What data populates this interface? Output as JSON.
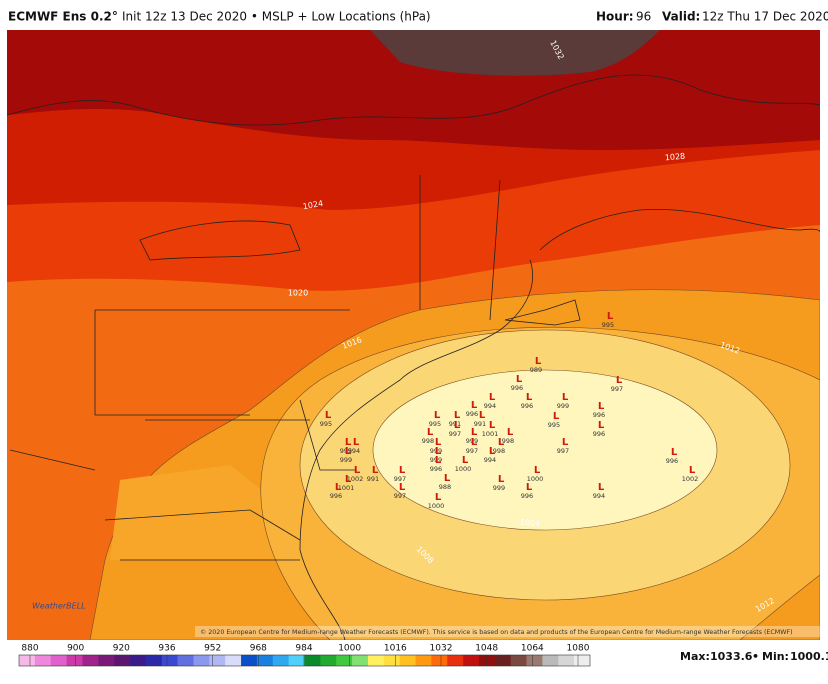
{
  "header": {
    "title": "ECMWF Ens 0.2°",
    "subtitle": "Init 12z 13 Dec 2020 • MSLP + Low Locations (hPa)",
    "hour_label": "Hour:",
    "hour": "96",
    "valid_label": "Valid:",
    "valid": "12z Thu 17 Dec 2020"
  },
  "map": {
    "contour_labels": [
      "1032",
      "1028",
      "1024",
      "1020",
      "1016",
      "1012",
      "1008",
      "1004",
      "1012"
    ],
    "low_symbol": "L",
    "low_values": [
      989,
      995,
      996,
      997,
      994,
      996,
      999,
      996,
      996,
      995,
      991,
      991,
      995,
      997,
      1001,
      996,
      998,
      999,
      998,
      999,
      997,
      998,
      997,
      999,
      994,
      996,
      996,
      1000,
      995,
      994,
      999,
      1002,
      991,
      997,
      1000,
      1002,
      1001,
      988,
      999,
      996,
      997,
      996,
      994,
      1000,
      995
    ],
    "copyright": "© 2020 European Centre for Medium-range Weather Forecasts (ECMWF). This service is based on data and products of the European Centre for Medium-range Weather Forecasts (ECMWF)",
    "logo": "WeatherBELL"
  },
  "colorbar": {
    "ticks": [
      880,
      900,
      920,
      936,
      952,
      968,
      984,
      1000,
      1016,
      1032,
      1048,
      1064,
      1080
    ]
  },
  "footer": {
    "max_label": "Max:",
    "max": "1033.6",
    "min_label": "Min:",
    "min": "1000.1"
  }
}
